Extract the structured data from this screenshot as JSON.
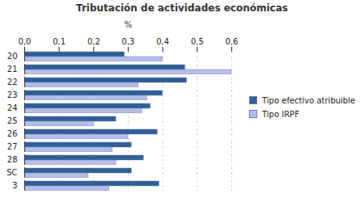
{
  "chart_data": {
    "type": "bar",
    "title": "Tributación de actividades económicas",
    "xlabel": "%",
    "orientation": "horizontal",
    "grid": true,
    "legend": "right",
    "categories": [
      "20",
      "21",
      "22",
      "23",
      "24",
      "25",
      "26",
      "27",
      "28",
      "SC",
      "3"
    ],
    "series": [
      {
        "name": "Tipo efectivo atribuible",
        "color": "#2f5f94",
        "values": [
          0.29,
          0.465,
          0.47,
          0.4,
          0.365,
          0.265,
          0.385,
          0.31,
          0.345,
          0.31,
          0.39
        ]
      },
      {
        "name": "Tipo IRPF",
        "color": "#b3bfe8",
        "values": [
          0.4,
          0.6,
          0.33,
          0.355,
          0.34,
          0.2,
          0.3,
          0.255,
          0.265,
          0.185,
          0.245
        ]
      }
    ],
    "xlim": [
      0,
      0.6
    ],
    "xticks": [
      {
        "value": 0,
        "label": "0,0"
      },
      {
        "value": 0.1,
        "label": "0,1"
      },
      {
        "value": 0.2,
        "label": "0,2"
      },
      {
        "value": 0.3,
        "label": "0,3"
      },
      {
        "value": 0.4,
        "label": "0,4"
      },
      {
        "value": 0.5,
        "label": "0,5"
      },
      {
        "value": 0.6,
        "label": "0,6"
      }
    ]
  }
}
